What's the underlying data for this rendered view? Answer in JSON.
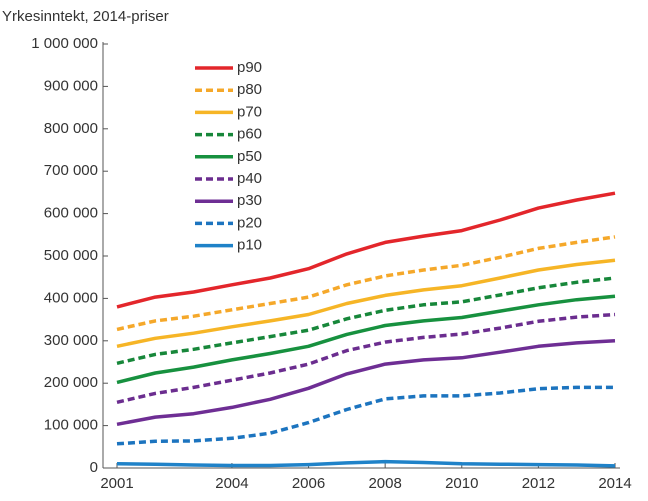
{
  "chart_data": {
    "type": "line",
    "title": "Yrkesinntekt, 2014-priser",
    "x": [
      2001,
      2002,
      2003,
      2004,
      2005,
      2006,
      2007,
      2008,
      2009,
      2010,
      2011,
      2012,
      2013,
      2014
    ],
    "xlim": [
      2001,
      2014
    ],
    "xticks": [
      2001,
      2004,
      2006,
      2008,
      2010,
      2012,
      2014
    ],
    "ylim": [
      0,
      1000000
    ],
    "yticks": [
      0,
      {
        "value": 100000,
        "label": "100 000"
      },
      {
        "value": 200000,
        "label": "200 000"
      },
      {
        "value": 300000,
        "label": "300 000"
      },
      {
        "value": 400000,
        "label": "400 000"
      },
      {
        "value": 500000,
        "label": "500 000"
      },
      {
        "value": 600000,
        "label": "600 000"
      },
      {
        "value": 700000,
        "label": "700 000"
      },
      {
        "value": 800000,
        "label": "800 000"
      },
      {
        "value": 900000,
        "label": "900 000"
      },
      {
        "value": 1000000,
        "label": "1 000 000"
      }
    ],
    "grid": false,
    "legend": "upper left",
    "series": [
      {
        "name": "p90",
        "color": "#e3262b",
        "dashed": false,
        "values": [
          380000,
          403000,
          415000,
          432000,
          448000,
          470000,
          505000,
          532000,
          547000,
          560000,
          585000,
          613000,
          632000,
          648000
        ]
      },
      {
        "name": "p80",
        "color": "#f5a82a",
        "dashed": true,
        "values": [
          327000,
          347000,
          358000,
          373000,
          388000,
          403000,
          432000,
          453000,
          467000,
          478000,
          497000,
          518000,
          532000,
          545000
        ]
      },
      {
        "name": "p70",
        "color": "#f6b526",
        "dashed": false,
        "values": [
          287000,
          306000,
          318000,
          333000,
          347000,
          362000,
          388000,
          407000,
          420000,
          430000,
          448000,
          467000,
          480000,
          490000
        ]
      },
      {
        "name": "p60",
        "color": "#17873a",
        "dashed": true,
        "values": [
          247000,
          268000,
          280000,
          295000,
          310000,
          325000,
          352000,
          372000,
          385000,
          392000,
          408000,
          425000,
          438000,
          448000
        ]
      },
      {
        "name": "p50",
        "color": "#17913f",
        "dashed": false,
        "values": [
          202000,
          224000,
          238000,
          255000,
          270000,
          287000,
          315000,
          336000,
          347000,
          355000,
          370000,
          385000,
          397000,
          405000
        ]
      },
      {
        "name": "p40",
        "color": "#6b2d8f",
        "dashed": true,
        "values": [
          155000,
          176000,
          190000,
          207000,
          224000,
          245000,
          277000,
          297000,
          308000,
          316000,
          330000,
          346000,
          356000,
          362000
        ]
      },
      {
        "name": "p30",
        "color": "#6e2e94",
        "dashed": false,
        "values": [
          103000,
          120000,
          128000,
          143000,
          162000,
          188000,
          222000,
          245000,
          255000,
          260000,
          273000,
          287000,
          295000,
          300000
        ]
      },
      {
        "name": "p20",
        "color": "#1c74bf",
        "dashed": true,
        "values": [
          57000,
          63000,
          64000,
          70000,
          82000,
          107000,
          138000,
          163000,
          170000,
          170000,
          177000,
          187000,
          190000,
          190000
        ]
      },
      {
        "name": "p10",
        "color": "#1f82c8",
        "dashed": false,
        "values": [
          10000,
          9000,
          7000,
          6000,
          6000,
          8000,
          12000,
          15000,
          13000,
          10000,
          9000,
          8000,
          7000,
          5000
        ]
      }
    ]
  }
}
